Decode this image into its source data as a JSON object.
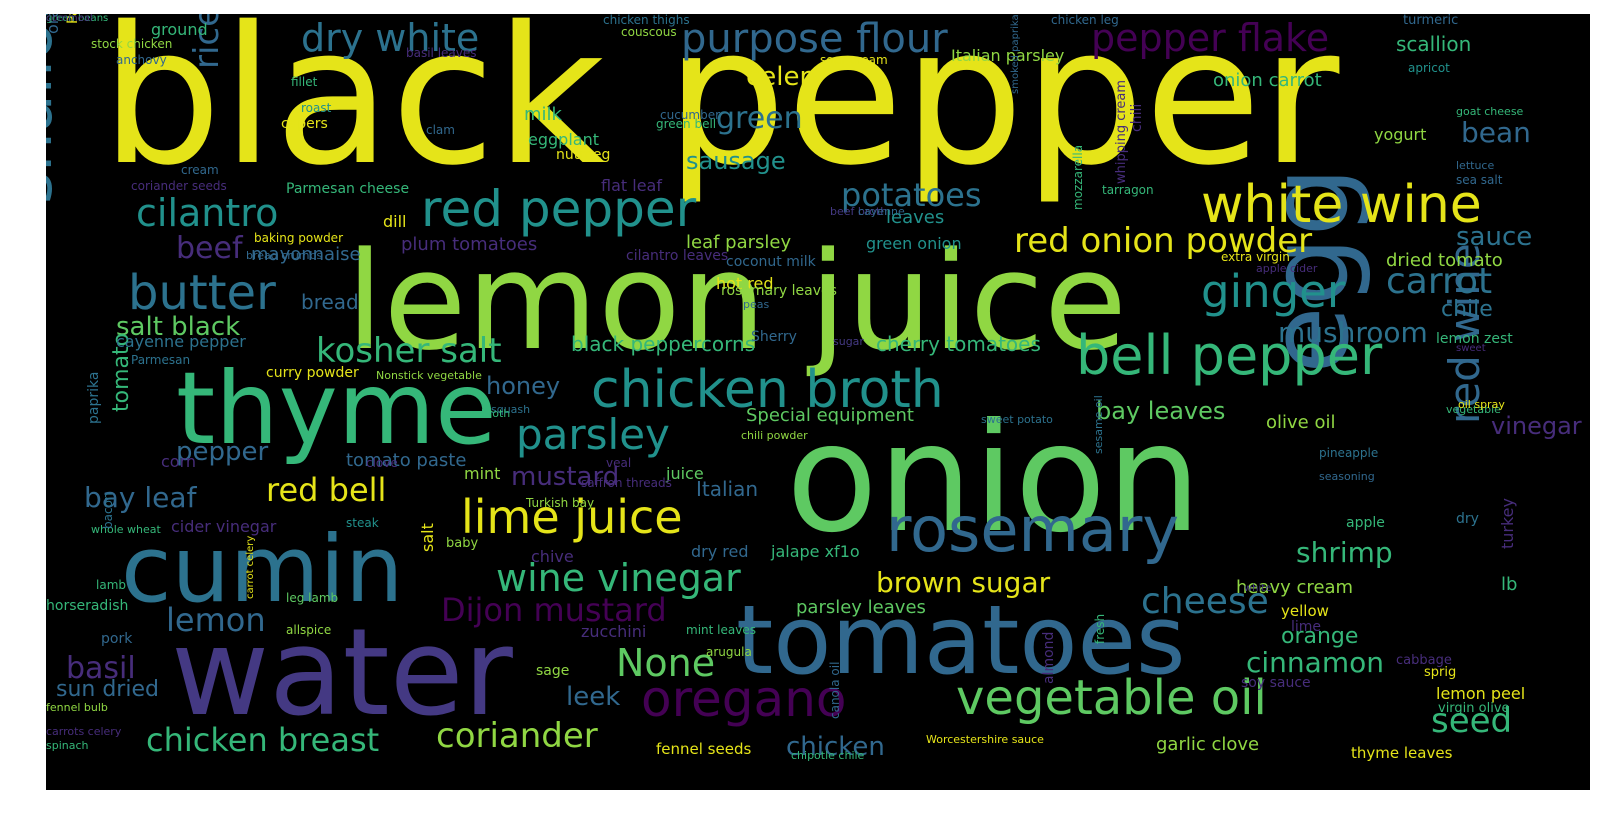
{
  "palette": {
    "c1": "#e5e419",
    "c2": "#5ec962",
    "c3": "#21918c",
    "c4": "#3b528b",
    "c5": "#440154",
    "c6": "#90d743",
    "c7": "#2c728e",
    "c8": "#31688e",
    "c9": "#35b779",
    "c10": "#472d7b",
    "c11": "#fde725",
    "c12": "#443983"
  },
  "words": [
    {
      "text": "black pepper",
      "size": 190,
      "color": "c1"
    },
    {
      "text": "lemon juice",
      "size": 135,
      "color": "c6"
    },
    {
      "text": "onion",
      "size": 150,
      "color": "c2"
    },
    {
      "text": "water",
      "size": 120,
      "color": "c12"
    },
    {
      "text": "thyme",
      "size": 100,
      "color": "c9"
    },
    {
      "text": "tomatoes",
      "size": 95,
      "color": "c8"
    },
    {
      "text": "cumin",
      "size": 92,
      "color": "c7"
    },
    {
      "text": "egg",
      "size": 110,
      "color": "c8"
    },
    {
      "text": "shallot",
      "size": 62,
      "color": "c7"
    },
    {
      "text": "red pepper",
      "size": 50,
      "color": "c3"
    },
    {
      "text": "white wine",
      "size": 52,
      "color": "c1"
    },
    {
      "text": "chicken broth",
      "size": 52,
      "color": "c3"
    },
    {
      "text": "bell pepper",
      "size": 54,
      "color": "c9"
    },
    {
      "text": "butter",
      "size": 48,
      "color": "c7"
    },
    {
      "text": "ginger",
      "size": 45,
      "color": "c3"
    },
    {
      "text": "rosemary",
      "size": 62,
      "color": "c8"
    },
    {
      "text": "parsley",
      "size": 42,
      "color": "c3"
    },
    {
      "text": "lime juice",
      "size": 46,
      "color": "c1"
    },
    {
      "text": "wine vinegar",
      "size": 38,
      "color": "c9"
    },
    {
      "text": "vegetable oil",
      "size": 48,
      "color": "c2"
    },
    {
      "text": "oregano",
      "size": 50,
      "color": "c5"
    },
    {
      "text": "red onion powder",
      "size": 34,
      "color": "c1"
    },
    {
      "text": "cilantro",
      "size": 38,
      "color": "c3"
    },
    {
      "text": "purpose flour",
      "size": 40,
      "color": "c8"
    },
    {
      "text": "pepper flake",
      "size": 38,
      "color": "c5"
    },
    {
      "text": "dry white",
      "size": 38,
      "color": "c7"
    },
    {
      "text": "potatoes",
      "size": 32,
      "color": "c7"
    },
    {
      "text": "kosher salt",
      "size": 34,
      "color": "c9"
    },
    {
      "text": "red wine",
      "size": 42,
      "color": "c8"
    },
    {
      "text": "cheese",
      "size": 36,
      "color": "c7"
    },
    {
      "text": "carrot",
      "size": 36,
      "color": "c7"
    },
    {
      "text": "Dijon mustard",
      "size": 32,
      "color": "c5"
    },
    {
      "text": "None",
      "size": 38,
      "color": "c2"
    },
    {
      "text": "coriander",
      "size": 34,
      "color": "c6"
    },
    {
      "text": "chicken breast",
      "size": 32,
      "color": "c9"
    },
    {
      "text": "brown sugar",
      "size": 28,
      "color": "c1"
    },
    {
      "text": "red bell",
      "size": 32,
      "color": "c1"
    },
    {
      "text": "mushroom",
      "size": 28,
      "color": "c7"
    },
    {
      "text": "shrimp",
      "size": 28,
      "color": "c9"
    },
    {
      "text": "cinnamon",
      "size": 28,
      "color": "c9"
    },
    {
      "text": "seed",
      "size": 34,
      "color": "c9"
    },
    {
      "text": "sauce",
      "size": 26,
      "color": "c7"
    },
    {
      "text": "bean",
      "size": 28,
      "color": "c8"
    },
    {
      "text": "green",
      "size": 30,
      "color": "c7"
    },
    {
      "text": "beef",
      "size": 30,
      "color": "c10"
    },
    {
      "text": "rice",
      "size": 34,
      "color": "c8"
    },
    {
      "text": "basil",
      "size": 30,
      "color": "c10"
    },
    {
      "text": "lemon",
      "size": 32,
      "color": "c8"
    },
    {
      "text": "bay leaf",
      "size": 28,
      "color": "c8"
    },
    {
      "text": "pepper",
      "size": 26,
      "color": "c8"
    },
    {
      "text": "salt black",
      "size": 26,
      "color": "c2"
    },
    {
      "text": "celery",
      "size": 26,
      "color": "c1"
    },
    {
      "text": "sausage",
      "size": 24,
      "color": "c3"
    },
    {
      "text": "honey",
      "size": 24,
      "color": "c8"
    },
    {
      "text": "mustard",
      "size": 26,
      "color": "c10"
    },
    {
      "text": "chicken",
      "size": 26,
      "color": "c8"
    },
    {
      "text": "vinegar",
      "size": 24,
      "color": "c10"
    },
    {
      "text": "bay leaves",
      "size": 24,
      "color": "c2"
    },
    {
      "text": "leek",
      "size": 26,
      "color": "c8"
    },
    {
      "text": "sun dried",
      "size": 22,
      "color": "c8"
    },
    {
      "text": "tomato",
      "size": 22,
      "color": "c9"
    },
    {
      "text": "orange",
      "size": 22,
      "color": "c9"
    },
    {
      "text": "chile",
      "size": 22,
      "color": "c7"
    },
    {
      "text": "dried tomato",
      "size": 18,
      "color": "c6"
    },
    {
      "text": "scallion",
      "size": 20,
      "color": "c9"
    },
    {
      "text": "onion carrot",
      "size": 18,
      "color": "c9"
    },
    {
      "text": "Italian parsley",
      "size": 16,
      "color": "c6"
    },
    {
      "text": "black peppercorns",
      "size": 20,
      "color": "c9"
    },
    {
      "text": "cherry tomatoes",
      "size": 20,
      "color": "c9"
    },
    {
      "text": "plum tomatoes",
      "size": 18,
      "color": "c10"
    },
    {
      "text": "leaf parsley",
      "size": 18,
      "color": "c6"
    },
    {
      "text": "green onion",
      "size": 16,
      "color": "c3"
    },
    {
      "text": "tomato paste",
      "size": 18,
      "color": "c8"
    },
    {
      "text": "Special equipment",
      "size": 18,
      "color": "c2"
    },
    {
      "text": "parsley leaves",
      "size": 18,
      "color": "c2"
    },
    {
      "text": "heavy cream",
      "size": 18,
      "color": "c6"
    },
    {
      "text": "garlic clove",
      "size": 18,
      "color": "c6"
    },
    {
      "text": "fennel seeds",
      "size": 15,
      "color": "c1"
    },
    {
      "text": "olive oil",
      "size": 18,
      "color": "c6"
    },
    {
      "text": "yogurt",
      "size": 16,
      "color": "c6"
    },
    {
      "text": "turkey",
      "size": 16,
      "color": "c10"
    },
    {
      "text": "lb",
      "size": 18,
      "color": "c9"
    },
    {
      "text": "yellow",
      "size": 15,
      "color": "c1"
    },
    {
      "text": "lime",
      "size": 14,
      "color": "c10"
    },
    {
      "text": "lemon zest",
      "size": 14,
      "color": "c9"
    },
    {
      "text": "lemon peel",
      "size": 16,
      "color": "c1"
    },
    {
      "text": "thyme leaves",
      "size": 15,
      "color": "c1"
    },
    {
      "text": "virgin olive",
      "size": 13,
      "color": "c9"
    },
    {
      "text": "cabbage",
      "size": 13,
      "color": "c10"
    },
    {
      "text": "sprig",
      "size": 13,
      "color": "c1"
    },
    {
      "text": "soy sauce",
      "size": 14,
      "color": "c10"
    },
    {
      "text": "apple",
      "size": 14,
      "color": "c9"
    },
    {
      "text": "dry",
      "size": 14,
      "color": "c7"
    },
    {
      "text": "Italian",
      "size": 20,
      "color": "c8"
    },
    {
      "text": "mint",
      "size": 16,
      "color": "c6"
    },
    {
      "text": "juice",
      "size": 16,
      "color": "c2"
    },
    {
      "text": "zucchini",
      "size": 16,
      "color": "c10"
    },
    {
      "text": "dry red",
      "size": 16,
      "color": "c8"
    },
    {
      "text": "jalape xf1o",
      "size": 16,
      "color": "c9"
    },
    {
      "text": "chive",
      "size": 16,
      "color": "c10"
    },
    {
      "text": "salt",
      "size": 16,
      "color": "c1"
    },
    {
      "text": "sage",
      "size": 14,
      "color": "c6"
    },
    {
      "text": "hot red",
      "size": 16,
      "color": "c1"
    },
    {
      "text": "Sherry",
      "size": 14,
      "color": "c8"
    },
    {
      "text": "rosemary leaves",
      "size": 14,
      "color": "c6"
    },
    {
      "text": "coconut milk",
      "size": 14,
      "color": "c8"
    },
    {
      "text": "cilantro leaves",
      "size": 14,
      "color": "c10"
    },
    {
      "text": "mayonnaise",
      "size": 18,
      "color": "c8"
    },
    {
      "text": "bread",
      "size": 20,
      "color": "c8"
    },
    {
      "text": "cayenne pepper",
      "size": 16,
      "color": "c7"
    },
    {
      "text": "curry powder",
      "size": 14,
      "color": "c1"
    },
    {
      "text": "milk",
      "size": 18,
      "color": "c9"
    },
    {
      "text": "eggplant",
      "size": 16,
      "color": "c9"
    },
    {
      "text": "capers",
      "size": 14,
      "color": "c1"
    },
    {
      "text": "nutmeg",
      "size": 14,
      "color": "c1"
    },
    {
      "text": "flat leaf",
      "size": 16,
      "color": "c10"
    },
    {
      "text": "Parmesan cheese",
      "size": 14,
      "color": "c9"
    },
    {
      "text": "leaves",
      "size": 18,
      "color": "c3"
    },
    {
      "text": "dill",
      "size": 16,
      "color": "c1"
    },
    {
      "text": "cider vinegar",
      "size": 16,
      "color": "c10"
    },
    {
      "text": "corn",
      "size": 16,
      "color": "c10"
    },
    {
      "text": "paprika",
      "size": 14,
      "color": "c7"
    },
    {
      "text": "balsamic vinegar",
      "size": 18,
      "color": "c8"
    },
    {
      "text": "orange juice",
      "size": 16,
      "color": "c8"
    },
    {
      "text": "Parmigiano Reggiano",
      "size": 14,
      "color": "c1"
    },
    {
      "text": "ground",
      "size": 16,
      "color": "c9"
    },
    {
      "text": "stock chicken",
      "size": 12,
      "color": "c6"
    },
    {
      "text": "anchovy",
      "size": 12,
      "color": "c8"
    },
    {
      "text": "basil leaves",
      "size": 12,
      "color": "c10"
    },
    {
      "text": "fillet",
      "size": 12,
      "color": "c9"
    },
    {
      "text": "roast",
      "size": 12,
      "color": "c3"
    },
    {
      "text": "clam",
      "size": 12,
      "color": "c8"
    },
    {
      "text": "green bell",
      "size": 12,
      "color": "c9"
    },
    {
      "text": "cream",
      "size": 12,
      "color": "c8"
    },
    {
      "text": "coriander seeds",
      "size": 12,
      "color": "c10"
    },
    {
      "text": "baking powder",
      "size": 12,
      "color": "c1"
    },
    {
      "text": "bread crumbs",
      "size": 11,
      "color": "c8"
    },
    {
      "text": "Parmesan",
      "size": 12,
      "color": "c7"
    },
    {
      "text": "Nonstick vegetable",
      "size": 11,
      "color": "c6"
    },
    {
      "text": "clove",
      "size": 12,
      "color": "c10"
    },
    {
      "text": "veal",
      "size": 12,
      "color": "c10"
    },
    {
      "text": "steak",
      "size": 12,
      "color": "c3"
    },
    {
      "text": "whole wheat",
      "size": 11,
      "color": "c9"
    },
    {
      "text": "lamb",
      "size": 12,
      "color": "c9"
    },
    {
      "text": "horseradish",
      "size": 14,
      "color": "c9"
    },
    {
      "text": "pork",
      "size": 14,
      "color": "c8"
    },
    {
      "text": "leg lamb",
      "size": 12,
      "color": "c2"
    },
    {
      "text": "allspice",
      "size": 12,
      "color": "c6"
    },
    {
      "text": "mint leaves",
      "size": 12,
      "color": "c9"
    },
    {
      "text": "arugula",
      "size": 12,
      "color": "c6"
    },
    {
      "text": "fennel bulb",
      "size": 11,
      "color": "c6"
    },
    {
      "text": "carrots celery",
      "size": 11,
      "color": "c10"
    },
    {
      "text": "spinach",
      "size": 11,
      "color": "c9"
    },
    {
      "text": "chipotle chile",
      "size": 11,
      "color": "c9"
    },
    {
      "text": "Worcestershire sauce",
      "size": 11,
      "color": "c1"
    },
    {
      "text": "canola oil",
      "size": 12,
      "color": "c8"
    },
    {
      "text": "almond",
      "size": 14,
      "color": "c10"
    },
    {
      "text": "baby",
      "size": 13,
      "color": "c6"
    },
    {
      "text": "Turkish bay",
      "size": 12,
      "color": "c6"
    },
    {
      "text": "saffron threads",
      "size": 12,
      "color": "c10"
    },
    {
      "text": "squash",
      "size": 11,
      "color": "c7"
    },
    {
      "text": "broth",
      "size": 11,
      "color": "c9"
    },
    {
      "text": "chili powder",
      "size": 11,
      "color": "c6"
    },
    {
      "text": "sweet potato",
      "size": 11,
      "color": "c7"
    },
    {
      "text": "pineapple",
      "size": 12,
      "color": "c7"
    },
    {
      "text": "seasoning",
      "size": 11,
      "color": "c8"
    },
    {
      "text": "vegetable",
      "size": 11,
      "color": "c9"
    },
    {
      "text": "oil spray",
      "size": 11,
      "color": "c1"
    },
    {
      "text": "sweet",
      "size": 10,
      "color": "c10"
    },
    {
      "text": "white",
      "size": 10,
      "color": "c12"
    },
    {
      "text": "lettuce",
      "size": 11,
      "color": "c8"
    },
    {
      "text": "sea salt",
      "size": 12,
      "color": "c8"
    },
    {
      "text": "goat cheese",
      "size": 11,
      "color": "c9"
    },
    {
      "text": "apple cider",
      "size": 11,
      "color": "c10"
    },
    {
      "text": "extra virgin",
      "size": 12,
      "color": "c1"
    },
    {
      "text": "peas",
      "size": 11,
      "color": "c8"
    },
    {
      "text": "sugar",
      "size": 11,
      "color": "c12"
    },
    {
      "text": "beef broth",
      "size": 11,
      "color": "c12"
    },
    {
      "text": "cayenne",
      "size": 11,
      "color": "c8"
    },
    {
      "text": "tarragon",
      "size": 12,
      "color": "c9"
    },
    {
      "text": "turmeric",
      "size": 13,
      "color": "c8"
    },
    {
      "text": "apricot",
      "size": 12,
      "color": "c3"
    },
    {
      "text": "chicken leg",
      "size": 12,
      "color": "c8"
    },
    {
      "text": "chicken thighs",
      "size": 12,
      "color": "c7"
    },
    {
      "text": "couscous",
      "size": 12,
      "color": "c6"
    },
    {
      "text": "sour cream",
      "size": 12,
      "color": "c1"
    },
    {
      "text": "cucumber",
      "size": 12,
      "color": "c8"
    },
    {
      "text": "chicken stock",
      "size": 14,
      "color": "c8"
    },
    {
      "text": "pine nuts",
      "size": 11,
      "color": "c1"
    },
    {
      "text": "smoked paprika",
      "size": 10,
      "color": "c8"
    },
    {
      "text": "mozzarella",
      "size": 12,
      "color": "c9"
    },
    {
      "text": "whipping cream",
      "size": 13,
      "color": "c10"
    },
    {
      "text": "chili",
      "size": 14,
      "color": "c10"
    },
    {
      "text": "fresh",
      "size": 12,
      "color": "c9"
    },
    {
      "text": "sesame oil",
      "size": 11,
      "color": "c7"
    },
    {
      "text": "bacon",
      "size": 12,
      "color": "c7"
    },
    {
      "text": "carrot celery",
      "size": 10,
      "color": "c1"
    },
    {
      "text": "green beans",
      "size": 10,
      "color": "c9"
    },
    {
      "text": "cornmeal",
      "size": 10,
      "color": "c10"
    }
  ]
}
